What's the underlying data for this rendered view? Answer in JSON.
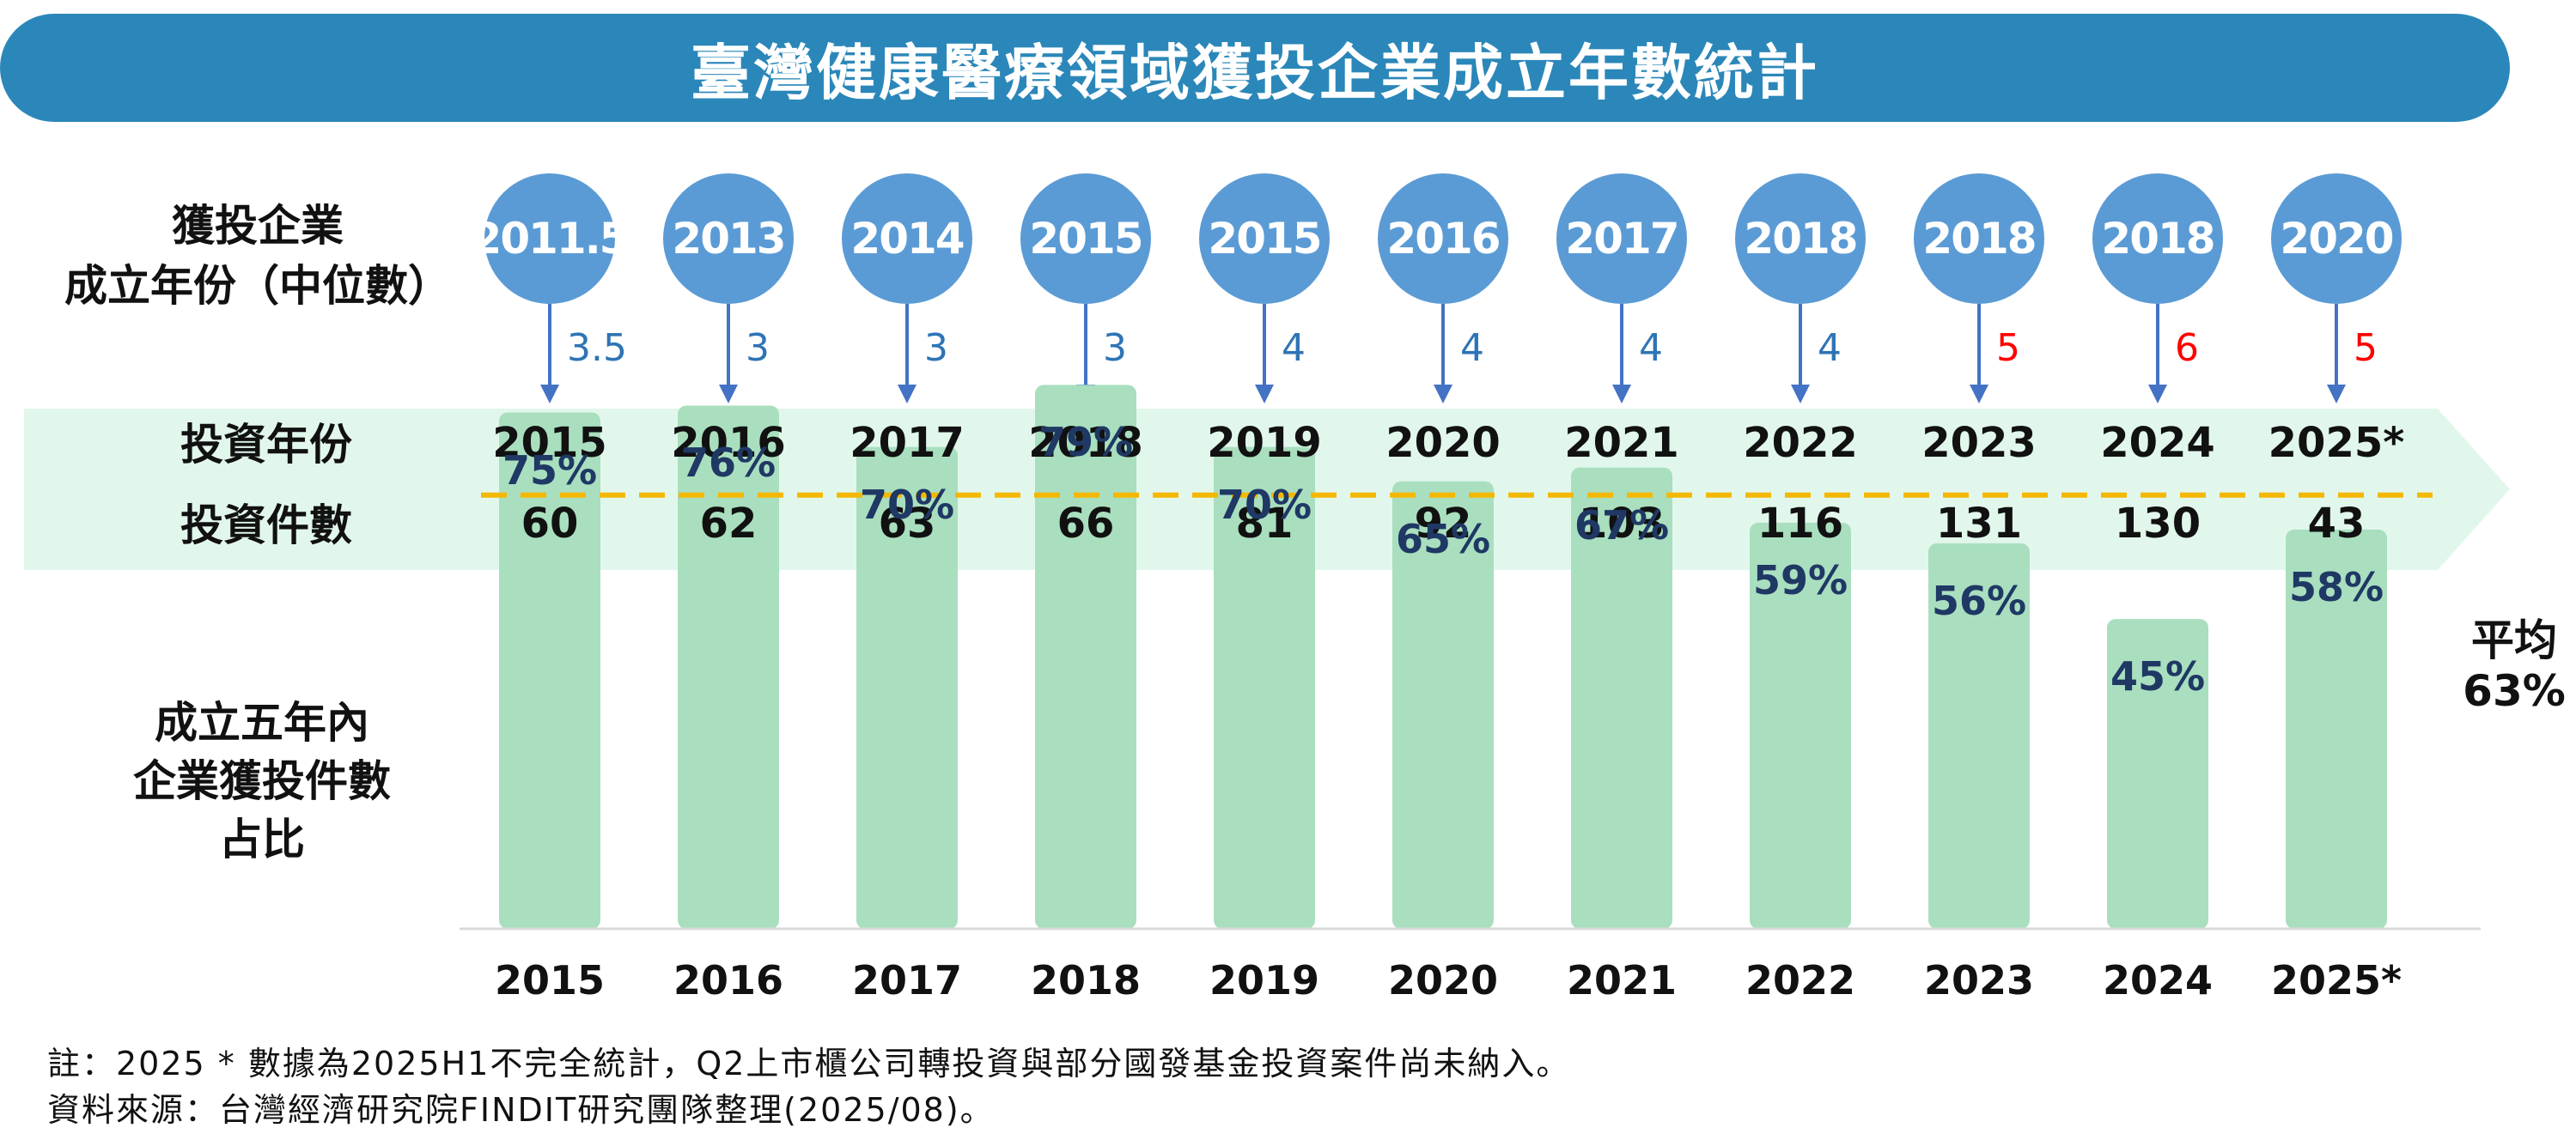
{
  "title": "臺灣健康醫療領域獲投企業成立年數統計",
  "labels": {
    "median_year": "獲投企業\n成立年份（中位數）",
    "median_year_line1": "獲投企業",
    "median_year_line2": "成立年份（中位數）",
    "invest_year": "投資年份",
    "invest_count": "投資件數",
    "share_line1": "成立五年內",
    "share_line2": "企業獲投件數",
    "share_line3": "占比"
  },
  "average": {
    "label": "平均",
    "value": "63%",
    "percent": 63
  },
  "colors": {
    "banner": "#2b87b9",
    "circle": "#5b9bd5",
    "arrow": "#4472c4",
    "gap_blue": "#2e74b5",
    "gap_red": "#ff0000",
    "band": "#e2f7ec",
    "bar": "#a9dfbf",
    "bar_label": "#1f3864",
    "avg_line": "#f5b800"
  },
  "chart_data": {
    "type": "bar",
    "title": "臺灣健康醫療領域獲投企業成立年數統計",
    "categories": [
      "2015",
      "2016",
      "2017",
      "2018",
      "2019",
      "2020",
      "2021",
      "2022",
      "2023",
      "2024",
      "2025*"
    ],
    "median_founding_year": [
      "2011.5",
      "2013",
      "2014",
      "2015",
      "2015",
      "2016",
      "2017",
      "2018",
      "2018",
      "2018",
      "2020"
    ],
    "years_gap": [
      "3.5",
      "3",
      "3",
      "3",
      "4",
      "4",
      "4",
      "4",
      "5",
      "6",
      "5"
    ],
    "years_gap_highlight": [
      false,
      false,
      false,
      false,
      false,
      false,
      false,
      false,
      true,
      true,
      true
    ],
    "investment_counts": [
      "60",
      "62",
      "63",
      "66",
      "81",
      "92",
      "103",
      "116",
      "131",
      "130",
      "43"
    ],
    "series": [
      {
        "name": "成立五年內企業獲投件數占比",
        "values": [
          75,
          76,
          70,
          79,
          70,
          65,
          67,
          59,
          56,
          45,
          58
        ],
        "labels": [
          "75%",
          "76%",
          "70%",
          "79%",
          "70%",
          "65%",
          "67%",
          "59%",
          "56%",
          "45%",
          "58%"
        ]
      }
    ],
    "average_line": 63,
    "ylabel": "",
    "xlabel": "",
    "ylim": [
      0,
      100
    ]
  },
  "notes": {
    "note": "註：2025 * 數據為2025H1不完全統計，Q2上市櫃公司轉投資與部分國發基金投資案件尚未納入。",
    "source": "資料來源：台灣經濟研究院FINDIT研究團隊整理(2025/08)。"
  }
}
